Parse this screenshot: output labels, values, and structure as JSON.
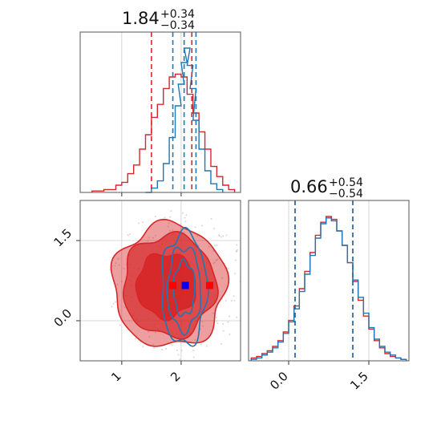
{
  "chart_data": {
    "type": "corner",
    "parameters": [
      {
        "title": {
          "value": "1.84",
          "plus": "+0.34",
          "minus": "−0.34"
        },
        "range": [
          0.3,
          3.0
        ],
        "ticks": [
          1,
          2
        ],
        "tick_labels": [
          "1",
          "2"
        ]
      },
      {
        "title": {
          "value": "0.66",
          "plus": "+0.54",
          "minus": "−0.54"
        },
        "range": [
          -0.75,
          2.25
        ],
        "ticks": [
          0.0,
          1.5
        ],
        "tick_labels": [
          "0.0",
          "1.5"
        ]
      }
    ],
    "series_colors": {
      "red": "#d62728",
      "blue": "#1f77b4",
      "marker_blue": "#0000ff",
      "marker_red": "#ff0000"
    },
    "hist1d": [
      {
        "param": 0,
        "color": "#d62728",
        "x": [
          0.55,
          0.65,
          0.75,
          0.85,
          0.95,
          1.05,
          1.15,
          1.25,
          1.35,
          1.45,
          1.55,
          1.65,
          1.75,
          1.85,
          1.95,
          2.05,
          2.15,
          2.25,
          2.35,
          2.45,
          2.55,
          2.65,
          2.75,
          2.85
        ],
        "y": [
          0.01,
          0.01,
          0.02,
          0.02,
          0.05,
          0.07,
          0.13,
          0.19,
          0.3,
          0.4,
          0.52,
          0.61,
          0.72,
          0.8,
          0.82,
          0.8,
          0.68,
          0.55,
          0.42,
          0.3,
          0.18,
          0.11,
          0.05,
          0.02
        ],
        "quantiles": [
          1.5,
          2.18
        ]
      },
      {
        "param": 0,
        "color": "#1f77b4",
        "x": [
          1.45,
          1.55,
          1.65,
          1.75,
          1.85,
          1.95,
          2.0,
          2.05,
          2.1,
          2.15,
          2.2,
          2.25,
          2.35,
          2.45,
          2.55,
          2.65
        ],
        "y": [
          0.0,
          0.03,
          0.08,
          0.2,
          0.38,
          0.6,
          0.75,
          0.9,
          1.0,
          0.88,
          0.72,
          0.5,
          0.3,
          0.15,
          0.06,
          0.02
        ],
        "quantiles": [
          1.86,
          2.05,
          2.25
        ]
      },
      {
        "param": 1,
        "color": "#d62728",
        "x": [
          -0.65,
          -0.55,
          -0.45,
          -0.35,
          -0.25,
          -0.15,
          -0.05,
          0.05,
          0.15,
          0.25,
          0.35,
          0.45,
          0.55,
          0.65,
          0.75,
          0.85,
          0.95,
          1.05,
          1.15,
          1.25,
          1.35,
          1.45,
          1.55,
          1.65,
          1.75,
          1.85,
          1.95,
          2.05,
          2.15
        ],
        "y": [
          0.02,
          0.03,
          0.05,
          0.07,
          0.1,
          0.14,
          0.2,
          0.28,
          0.38,
          0.5,
          0.62,
          0.75,
          0.87,
          0.96,
          1.0,
          0.98,
          0.9,
          0.8,
          0.68,
          0.55,
          0.42,
          0.31,
          0.22,
          0.14,
          0.09,
          0.05,
          0.03,
          0.02,
          0.01
        ],
        "quantiles": [
          0.12,
          1.2
        ]
      },
      {
        "param": 1,
        "color": "#1f77b4",
        "x": [
          -0.65,
          -0.55,
          -0.45,
          -0.35,
          -0.25,
          -0.15,
          -0.05,
          0.05,
          0.15,
          0.25,
          0.35,
          0.45,
          0.55,
          0.65,
          0.75,
          0.85,
          0.95,
          1.05,
          1.15,
          1.25,
          1.35,
          1.45,
          1.55,
          1.65,
          1.75,
          1.85,
          1.95,
          2.05,
          2.15
        ],
        "y": [
          0.01,
          0.02,
          0.04,
          0.06,
          0.09,
          0.13,
          0.19,
          0.27,
          0.36,
          0.48,
          0.6,
          0.73,
          0.85,
          0.95,
          0.99,
          0.97,
          0.9,
          0.8,
          0.68,
          0.56,
          0.44,
          0.33,
          0.23,
          0.15,
          0.1,
          0.06,
          0.04,
          0.02,
          0.01
        ],
        "quantiles": [
          0.12,
          1.2
        ]
      }
    ],
    "hist2d": {
      "red_contours": [
        {
          "center": [
            1.8,
            0.66
          ],
          "radii": [
            0.95,
            1.15
          ],
          "level": 3
        },
        {
          "center": [
            1.8,
            0.66
          ],
          "radii": [
            0.78,
            0.95
          ],
          "level": 2
        },
        {
          "center": [
            1.75,
            0.66
          ],
          "radii": [
            0.5,
            0.6
          ],
          "level": 1
        }
      ],
      "blue_contours": [
        {
          "center": [
            2.05,
            0.6
          ],
          "radii": [
            0.38,
            1.05
          ]
        },
        {
          "center": [
            2.05,
            0.6
          ],
          "radii": [
            0.28,
            0.78
          ]
        },
        {
          "center": [
            2.05,
            0.6
          ],
          "radii": [
            0.18,
            0.5
          ]
        }
      ],
      "markers": [
        {
          "x": 1.86,
          "y": 0.66,
          "color": "#ff0000"
        },
        {
          "x": 2.07,
          "y": 0.66,
          "color": "#0000ff"
        },
        {
          "x": 2.48,
          "y": 0.66,
          "color": "#ff0000"
        }
      ]
    }
  }
}
